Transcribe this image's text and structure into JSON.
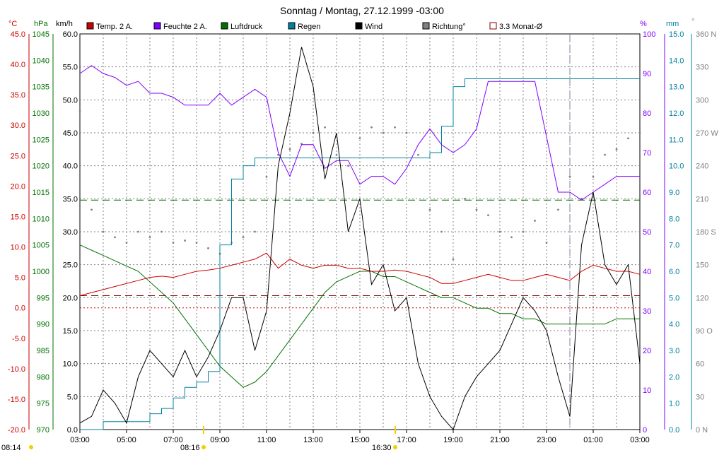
{
  "chart_data": {
    "type": "line",
    "title": "Sonntag / Montag, 27.12.1999  -03:00",
    "x_ticks": [
      "03:00",
      "05:00",
      "07:00",
      "09:00",
      "11:00",
      "13:00",
      "15:00",
      "17:00",
      "19:00",
      "21:00",
      "23:00",
      "01:00",
      "03:00"
    ],
    "bottom_labels": [
      "08:14",
      "08:16",
      "16:30"
    ],
    "legend": [
      {
        "name": "Temp. 2 A.",
        "color": "#cc0000"
      },
      {
        "name": "Feuchte 2 A.",
        "color": "#8000ff"
      },
      {
        "name": "Luftdruck",
        "color": "#007000"
      },
      {
        "name": "Regen",
        "color": "#0080a0"
      },
      {
        "name": "Wind",
        "color": "#000000"
      },
      {
        "name": "Richtung°",
        "color": "#808080"
      },
      {
        "name": "3.3 Monat-Ø",
        "color": "#800000"
      }
    ],
    "axes": {
      "temp": {
        "unit": "°C",
        "color": "#cc0000",
        "ticks": [
          "45.0",
          "40.0",
          "35.0",
          "30.0",
          "25.0",
          "20.0",
          "15.0",
          "10.0",
          "5.0",
          "0.0",
          "-5.0",
          "-10.0",
          "-15.0",
          "-20.0"
        ]
      },
      "pressure": {
        "unit": "hPa",
        "color": "#007000",
        "ticks": [
          "1045",
          "1040",
          "1035",
          "1030",
          "1025",
          "1020",
          "1015",
          "1010",
          "1005",
          "1000",
          "995",
          "990",
          "985",
          "980",
          "975",
          "970"
        ]
      },
      "wind": {
        "unit": "km/h",
        "color": "#000000",
        "ticks": [
          "60.0",
          "55.0",
          "50.0",
          "45.0",
          "40.0",
          "35.0",
          "30.0",
          "25.0",
          "20.0",
          "15.0",
          "10.0",
          "5.0",
          "0.0"
        ]
      },
      "humidity": {
        "unit": "%",
        "color": "#8000ff",
        "ticks": [
          "100",
          "90",
          "80",
          "70",
          "60",
          "50",
          "40",
          "30",
          "20",
          "10",
          "0"
        ]
      },
      "rain": {
        "unit": "mm",
        "color": "#0080a0",
        "ticks": [
          "15.0",
          "14.0",
          "13.0",
          "12.0",
          "11.0",
          "10.0",
          "9.0",
          "8.0",
          "7.0",
          "6.0",
          "5.0",
          "4.0",
          "3.0",
          "2.0",
          "1.0",
          "0.0"
        ]
      },
      "direction": {
        "unit": "°",
        "color": "#808080",
        "ticks": [
          "360 N",
          "330",
          "300",
          "270 W",
          "240",
          "210",
          "180 S",
          "150",
          "120",
          "90 O",
          "60",
          "30",
          "0 N"
        ]
      }
    },
    "series": [
      {
        "name": "Temp. 2 A.",
        "x": [
          0,
          0.5,
          1,
          1.5,
          2,
          2.5,
          3,
          3.5,
          4,
          4.5,
          5,
          5.5,
          6,
          6.5,
          7,
          7.5,
          8,
          8.5,
          9,
          9.5,
          10,
          10.5,
          11,
          11.5,
          12,
          12.5,
          13,
          13.5,
          14,
          14.5,
          15,
          15.5,
          16,
          16.5,
          17,
          17.5,
          18,
          18.5,
          19,
          19.5,
          20,
          20.5,
          21,
          21.5,
          22,
          22.5,
          23,
          23.5,
          24
        ],
        "values": [
          2.0,
          2.5,
          3.0,
          3.5,
          4.0,
          4.5,
          5.0,
          5.2,
          5.0,
          5.5,
          6.0,
          6.2,
          6.5,
          7.0,
          7.5,
          8.0,
          9.0,
          6.5,
          8.0,
          7.0,
          6.5,
          7.0,
          7.0,
          6.5,
          6.5,
          6.0,
          6.0,
          6.2,
          6.0,
          5.5,
          5.0,
          4.0,
          4.0,
          4.5,
          5.0,
          5.5,
          5.0,
          4.5,
          4.5,
          5.0,
          5.5,
          5.0,
          4.5,
          6.0,
          7.0,
          6.5,
          6.0,
          6.0,
          5.5
        ]
      },
      {
        "name": "Feuchte 2 A.",
        "x": [
          0,
          0.5,
          1,
          1.5,
          2,
          2.5,
          3,
          3.5,
          4,
          4.5,
          5,
          5.5,
          6,
          6.5,
          7,
          7.5,
          8,
          8.5,
          9,
          9.5,
          10,
          10.5,
          11,
          11.5,
          12,
          12.5,
          13,
          13.5,
          14,
          14.5,
          15,
          15.5,
          16,
          16.5,
          17,
          17.5,
          18,
          18.5,
          19,
          19.5,
          20,
          20.5,
          21,
          21.5,
          22,
          22.5,
          23,
          23.5,
          24
        ],
        "values": [
          90,
          92,
          90,
          89,
          87,
          88,
          85,
          85,
          84,
          82,
          82,
          82,
          85,
          82,
          84,
          86,
          84,
          70,
          64,
          72,
          72,
          66,
          68,
          68,
          62,
          64,
          64,
          62,
          66,
          72,
          76,
          72,
          70,
          72,
          76,
          88,
          88,
          88,
          88,
          88,
          74,
          60,
          60,
          58,
          60,
          62,
          64,
          64,
          64
        ]
      },
      {
        "name": "Luftdruck",
        "x": [
          0,
          0.5,
          1,
          1.5,
          2,
          2.5,
          3,
          3.5,
          4,
          4.5,
          5,
          5.5,
          6,
          6.5,
          7,
          7.5,
          8,
          8.5,
          9,
          9.5,
          10,
          10.5,
          11,
          11.5,
          12,
          12.5,
          13,
          13.5,
          14,
          14.5,
          15,
          15.5,
          16,
          16.5,
          17,
          17.5,
          18,
          18.5,
          19,
          19.5,
          20,
          20.5,
          21,
          21.5,
          22,
          22.5,
          23,
          23.5,
          24
        ],
        "values": [
          1005,
          1004,
          1003,
          1002,
          1001,
          1000,
          998,
          996,
          994,
          991,
          988,
          985,
          982,
          980,
          978,
          979,
          981,
          984,
          987,
          990,
          993,
          996,
          998,
          999,
          1000,
          1000,
          999,
          999,
          998,
          997,
          996,
          995,
          995,
          994,
          993,
          993,
          992,
          992,
          991,
          991,
          990,
          990,
          990,
          990,
          990,
          990,
          991,
          991,
          991
        ]
      },
      {
        "name": "Regen",
        "x": [
          0,
          0.5,
          1,
          1.5,
          2,
          2.5,
          3,
          3.5,
          4,
          4.5,
          5,
          5.5,
          6,
          6.5,
          7,
          7.5,
          8,
          8.5,
          9,
          9.5,
          10,
          10.5,
          11,
          11.5,
          12,
          12.5,
          13,
          13.5,
          14,
          14.5,
          15,
          15.5,
          16,
          16.5,
          17,
          17.5,
          18,
          18.5,
          19,
          19.5,
          20,
          20.5,
          21,
          21.5,
          22,
          22.5,
          23,
          23.5,
          24
        ],
        "values": [
          0.0,
          0.0,
          0.3,
          0.3,
          0.3,
          0.3,
          0.6,
          0.8,
          1.2,
          1.6,
          1.8,
          2.2,
          7.0,
          9.5,
          10.0,
          10.3,
          10.3,
          10.3,
          10.3,
          10.3,
          10.3,
          10.3,
          10.3,
          10.3,
          10.3,
          10.3,
          10.3,
          10.3,
          10.3,
          10.3,
          10.5,
          11.5,
          13.0,
          13.3,
          13.3,
          13.3,
          13.3,
          13.3,
          13.3,
          13.3,
          13.3,
          13.3,
          13.3,
          13.3,
          13.3,
          13.3,
          13.3,
          13.3,
          13.3
        ]
      },
      {
        "name": "Wind",
        "x": [
          0,
          0.5,
          1,
          1.5,
          2,
          2.5,
          3,
          3.5,
          4,
          4.5,
          5,
          5.5,
          6,
          6.5,
          7,
          7.5,
          8,
          8.5,
          9,
          9.5,
          10,
          10.5,
          11,
          11.5,
          12,
          12.5,
          13,
          13.5,
          14,
          14.5,
          15,
          15.5,
          16,
          16.5,
          17,
          17.5,
          18,
          18.5,
          19,
          19.5,
          20,
          20.5,
          21,
          21.5,
          22,
          22.5,
          23,
          23.5,
          24
        ],
        "values": [
          1.0,
          2.0,
          6.0,
          4.0,
          1.0,
          8.0,
          12.0,
          10.0,
          8.0,
          12.0,
          8.0,
          11.0,
          15.0,
          20.0,
          20.0,
          12.0,
          18.0,
          40.0,
          48.0,
          58.0,
          52.0,
          38.0,
          45.0,
          30.0,
          35.0,
          22.0,
          25.0,
          18.0,
          20.0,
          10.0,
          5.0,
          2.0,
          0.0,
          5.0,
          8.0,
          10.0,
          12.0,
          16.0,
          20.0,
          18.0,
          15.0,
          8.0,
          2.0,
          28.0,
          36.0,
          25.0,
          22.0,
          25.0,
          10.0
        ]
      },
      {
        "name": "Richtung°",
        "x": [
          0,
          0.5,
          1,
          1.5,
          2,
          2.5,
          3,
          3.5,
          4,
          4.5,
          5,
          5.5,
          6,
          6.5,
          7,
          7.5,
          8,
          8.5,
          9,
          9.5,
          10,
          10.5,
          11,
          11.5,
          12,
          12.5,
          13,
          13.5,
          14,
          14.5,
          15,
          15.5,
          16,
          16.5,
          17,
          17.5,
          18,
          18.5,
          19,
          19.5,
          20,
          20.5,
          21,
          21.5,
          22,
          22.5,
          23,
          23.5,
          24
        ],
        "values": [
          290,
          200,
          180,
          175,
          170,
          180,
          175,
          180,
          170,
          172,
          170,
          165,
          160,
          170,
          175,
          180,
          230,
          250,
          255,
          260,
          270,
          275,
          250,
          240,
          265,
          275,
          270,
          275,
          270,
          250,
          200,
          180,
          155,
          210,
          200,
          195,
          180,
          175,
          180,
          190,
          170,
          200,
          230,
          210,
          230,
          250,
          255,
          265,
          270
        ]
      }
    ],
    "reference_lines": [
      {
        "name": "Feuchte",
        "axis": "humidity",
        "value": 58
      },
      {
        "name": "Temp",
        "axis": "temp",
        "value": 2.0
      },
      {
        "name": "Frost",
        "axis": "temp",
        "value": 0.0
      }
    ]
  }
}
